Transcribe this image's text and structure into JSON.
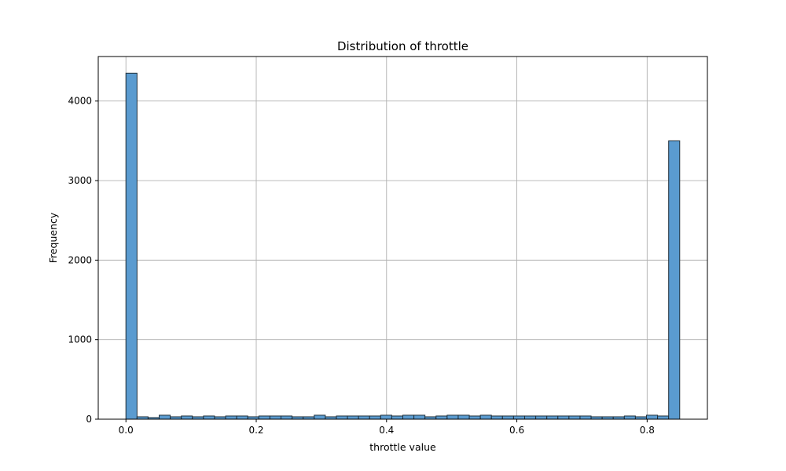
{
  "chart_data": {
    "type": "bar",
    "title": "Distribution of throttle",
    "xlabel": "throttle value",
    "ylabel": "Frequency",
    "xlim": [
      -0.0425,
      0.8925
    ],
    "ylim": [
      0,
      4560
    ],
    "xticks": [
      0.0,
      0.2,
      0.4,
      0.6,
      0.8
    ],
    "xtick_labels": [
      "0.0",
      "0.2",
      "0.4",
      "0.6",
      "0.8"
    ],
    "yticks": [
      0,
      1000,
      2000,
      3000,
      4000
    ],
    "ytick_labels": [
      "0",
      "1000",
      "2000",
      "3000",
      "4000"
    ],
    "grid": true,
    "bin_start": 0.0,
    "bin_width": 0.017,
    "values": [
      4350,
      30,
      20,
      50,
      30,
      40,
      30,
      40,
      30,
      40,
      40,
      30,
      40,
      40,
      40,
      30,
      30,
      50,
      30,
      40,
      40,
      40,
      40,
      50,
      40,
      50,
      50,
      30,
      40,
      50,
      50,
      40,
      50,
      40,
      40,
      40,
      40,
      40,
      40,
      40,
      40,
      40,
      30,
      30,
      30,
      40,
      30,
      50,
      40,
      3500
    ],
    "bar_color": "#5a9bd0",
    "edge_color": "#1f2f3a"
  }
}
